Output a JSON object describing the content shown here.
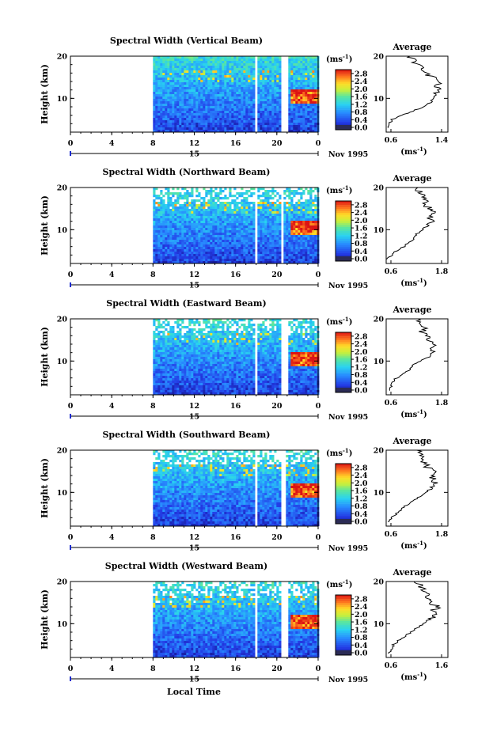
{
  "figure": {
    "x_axis_label": "Local Time",
    "width_colorbar_unit_base": "(ms",
    "width_colorbar_unit_exp": "-1",
    "width_colorbar_unit_close": ")"
  },
  "chart_data": [
    {
      "type": "heatmap",
      "title": "Spectral Width (Vertical Beam)",
      "ylabel": "Height (km)",
      "x_ticks": [
        "0",
        "4",
        "8",
        "12",
        "16",
        "20",
        "0"
      ],
      "xlim": [
        0,
        24
      ],
      "y_ticks": [
        "20",
        "10"
      ],
      "ylim": [
        2,
        20
      ],
      "date_marker": "15",
      "date_label": "Nov 1995",
      "data_start_hour": 8,
      "gaps_hours": [
        [
          17.7,
          18.0
        ],
        [
          20.3,
          21.0
        ]
      ],
      "colorbar": {
        "unit": "(ms-1)",
        "ticks": [
          "2.8",
          "2.4",
          "2.0",
          "1.6",
          "1.2",
          "0.8",
          "0.4",
          "0.0"
        ],
        "range": [
          0,
          3.0
        ]
      },
      "average_profile": {
        "title": "Average",
        "x_ticks": [
          "0.6",
          "1.4"
        ],
        "xlim": [
          0.6,
          1.4
        ],
        "xlabel": "(ms-1)",
        "height_km": [
          3,
          4,
          5,
          6,
          7,
          8,
          9,
          10,
          11,
          12,
          13,
          14,
          15,
          16,
          17,
          18,
          19,
          20
        ],
        "width_ms": [
          0.62,
          0.64,
          0.68,
          0.8,
          0.95,
          1.08,
          1.17,
          1.22,
          1.25,
          1.27,
          1.24,
          1.3,
          1.2,
          1.1,
          1.08,
          1.0,
          0.95,
          0.9
        ]
      }
    },
    {
      "type": "heatmap",
      "title": "Spectral Width (Northward Beam)",
      "ylabel": "Height (km)",
      "x_ticks": [
        "0",
        "4",
        "8",
        "12",
        "16",
        "20",
        "0"
      ],
      "xlim": [
        0,
        24
      ],
      "y_ticks": [
        "20",
        "10"
      ],
      "ylim": [
        2,
        20
      ],
      "date_marker": "15",
      "date_label": "Nov 1995",
      "data_start_hour": 8,
      "gaps_hours": [
        [
          17.8,
          18.0
        ],
        [
          20.3,
          20.6
        ]
      ],
      "colorbar": {
        "unit": "(ms-1)",
        "ticks": [
          "2.8",
          "2.4",
          "2.0",
          "1.6",
          "1.2",
          "0.8",
          "0.4",
          "0.0"
        ],
        "range": [
          0,
          3.0
        ]
      },
      "average_profile": {
        "title": "Average",
        "x_ticks": [
          "0.6",
          "1.8"
        ],
        "xlim": [
          0.6,
          1.8
        ],
        "xlabel": "(ms-1)",
        "height_km": [
          3,
          4,
          5,
          6,
          7,
          8,
          9,
          10,
          11,
          12,
          13,
          14,
          15,
          16,
          17,
          18,
          19,
          20
        ],
        "width_ms": [
          0.62,
          0.7,
          0.8,
          0.95,
          1.05,
          1.15,
          1.2,
          1.3,
          1.42,
          1.5,
          1.45,
          1.55,
          1.45,
          1.35,
          1.4,
          1.3,
          1.25,
          1.2
        ]
      }
    },
    {
      "type": "heatmap",
      "title": "Spectral Width (Eastward Beam)",
      "ylabel": "Height (km)",
      "x_ticks": [
        "0",
        "4",
        "8",
        "12",
        "16",
        "20",
        "0"
      ],
      "xlim": [
        0,
        24
      ],
      "y_ticks": [
        "20",
        "10"
      ],
      "ylim": [
        2,
        20
      ],
      "date_marker": "15",
      "date_label": "Nov 1995",
      "data_start_hour": 8,
      "gaps_hours": [
        [
          17.7,
          18.0
        ],
        [
          20.3,
          21.0
        ]
      ],
      "colorbar": {
        "unit": "(ms-1)",
        "ticks": [
          "2.8",
          "2.4",
          "2.0",
          "1.6",
          "1.2",
          "0.8",
          "0.4",
          "0.0"
        ],
        "range": [
          0,
          3.0
        ]
      },
      "average_profile": {
        "title": "Average",
        "x_ticks": [
          "0.6",
          "1.8"
        ],
        "xlim": [
          0.6,
          1.8
        ],
        "xlabel": "(ms-1)",
        "height_km": [
          3,
          4,
          5,
          6,
          7,
          8,
          9,
          10,
          11,
          12,
          13,
          14,
          15,
          16,
          17,
          18,
          19,
          20
        ],
        "width_ms": [
          0.65,
          0.7,
          0.72,
          0.8,
          0.95,
          1.05,
          1.1,
          1.25,
          1.45,
          1.5,
          1.4,
          1.55,
          1.45,
          1.4,
          1.3,
          1.35,
          1.25,
          1.2
        ]
      }
    },
    {
      "type": "heatmap",
      "title": "Spectral Width (Southward Beam)",
      "ylabel": "Height (km)",
      "x_ticks": [
        "0",
        "4",
        "8",
        "12",
        "16",
        "20",
        "0"
      ],
      "xlim": [
        0,
        24
      ],
      "y_ticks": [
        "20",
        "10"
      ],
      "ylim": [
        2,
        20
      ],
      "date_marker": "15",
      "date_label": "Nov 1995",
      "data_start_hour": 8,
      "gaps_hours": [
        [
          17.7,
          18.0
        ],
        [
          20.3,
          20.8
        ]
      ],
      "colorbar": {
        "unit": "(ms-1)",
        "ticks": [
          "2.8",
          "2.4",
          "2.0",
          "1.6",
          "1.2",
          "0.8",
          "0.4",
          "0.0"
        ],
        "range": [
          0,
          3.0
        ]
      },
      "average_profile": {
        "title": "Average",
        "x_ticks": [
          "0.6",
          "1.8"
        ],
        "xlim": [
          0.6,
          1.8
        ],
        "xlabel": "(ms-1)",
        "height_km": [
          3,
          4,
          5,
          6,
          7,
          8,
          9,
          10,
          11,
          12,
          13,
          14,
          15,
          16,
          17,
          18,
          19,
          20
        ],
        "width_ms": [
          0.65,
          0.7,
          0.8,
          0.9,
          1.0,
          1.15,
          1.25,
          1.35,
          1.5,
          1.55,
          1.52,
          1.48,
          1.5,
          1.4,
          1.35,
          1.3,
          1.25,
          1.2
        ]
      }
    },
    {
      "type": "heatmap",
      "title": "Spectral Width (Westward Beam)",
      "ylabel": "Height (km)",
      "x_ticks": [
        "0",
        "4",
        "8",
        "12",
        "16",
        "20",
        "0"
      ],
      "xlim": [
        0,
        24
      ],
      "y_ticks": [
        "20",
        "10"
      ],
      "ylim": [
        2,
        20
      ],
      "date_marker": "15",
      "date_label": "Nov 1995",
      "data_start_hour": 8,
      "gaps_hours": [
        [
          17.7,
          18.0
        ],
        [
          20.3,
          21.0
        ]
      ],
      "colorbar": {
        "unit": "(ms-1)",
        "ticks": [
          "2.8",
          "2.4",
          "2.0",
          "1.6",
          "1.2",
          "0.8",
          "0.4",
          "0.0"
        ],
        "range": [
          0,
          3.0
        ]
      },
      "average_profile": {
        "title": "Average",
        "x_ticks": [
          "0.6",
          "1.6"
        ],
        "xlim": [
          0.6,
          1.6
        ],
        "xlabel": "(ms-1)",
        "height_km": [
          3,
          4,
          5,
          6,
          7,
          8,
          9,
          10,
          11,
          12,
          13,
          14,
          15,
          16,
          17,
          18,
          19,
          20
        ],
        "width_ms": [
          0.65,
          0.7,
          0.72,
          0.8,
          0.9,
          1.0,
          1.1,
          1.2,
          1.3,
          1.4,
          1.35,
          1.45,
          1.3,
          1.25,
          1.35,
          1.2,
          1.15,
          1.1
        ]
      }
    }
  ]
}
